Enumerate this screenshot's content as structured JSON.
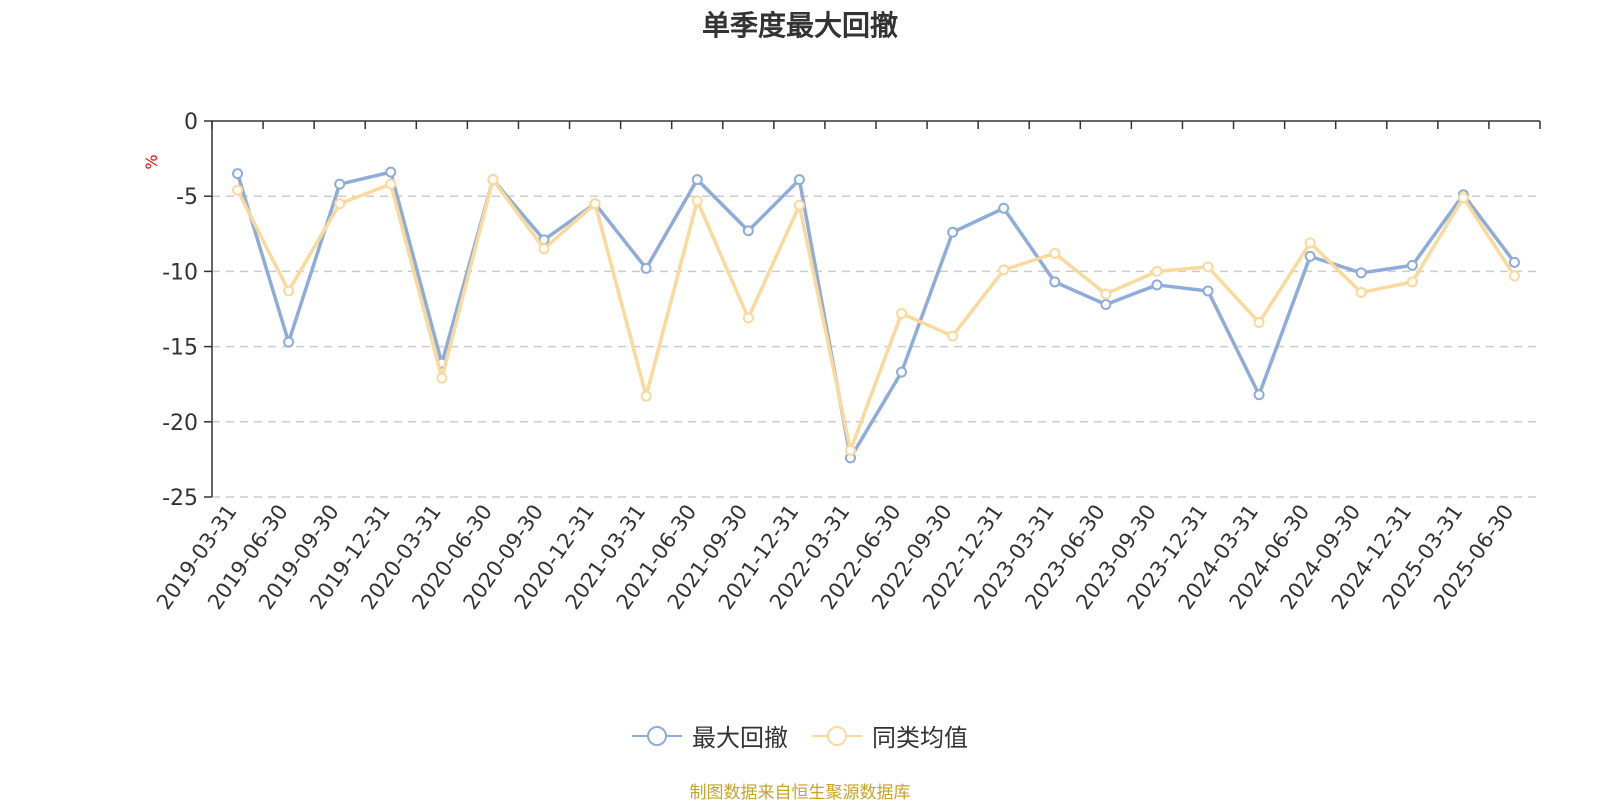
{
  "chart_data": {
    "type": "line",
    "title": "单季度最大回撤",
    "ylabel": "%",
    "xlabel": "",
    "ylim": [
      -25,
      0
    ],
    "yticks": [
      0,
      -5,
      -10,
      -15,
      -20,
      -25
    ],
    "grid": "horizontal dashed",
    "legend_position": "bottom",
    "categories": [
      "2019-03-31",
      "2019-06-30",
      "2019-09-30",
      "2019-12-31",
      "2020-03-31",
      "2020-06-30",
      "2020-09-30",
      "2020-12-31",
      "2021-03-31",
      "2021-06-30",
      "2021-09-30",
      "2021-12-31",
      "2022-03-31",
      "2022-06-30",
      "2022-09-30",
      "2022-12-31",
      "2023-03-31",
      "2023-06-30",
      "2023-09-30",
      "2023-12-31",
      "2024-03-31",
      "2024-06-30",
      "2024-09-30",
      "2024-12-31",
      "2025-03-31",
      "2025-06-30"
    ],
    "series": [
      {
        "name": "最大回撤",
        "color": "#8eacdb",
        "values": [
          -3.5,
          -14.7,
          -4.2,
          -3.4,
          -16.1,
          -3.9,
          -7.9,
          -5.5,
          -9.8,
          -3.9,
          -7.3,
          -3.9,
          -22.4,
          -16.7,
          -7.4,
          -5.8,
          -10.7,
          -12.2,
          -10.9,
          -11.3,
          -18.2,
          -9.0,
          -10.1,
          -9.6,
          -4.9,
          -9.4
        ]
      },
      {
        "name": "同类均值",
        "color": "#fbd99b",
        "values": [
          -4.6,
          -11.3,
          -5.5,
          -4.2,
          -17.1,
          -3.9,
          -8.5,
          -5.5,
          -18.3,
          -5.3,
          -13.1,
          -5.6,
          -21.9,
          -12.8,
          -14.3,
          -9.9,
          -8.8,
          -11.5,
          -10.0,
          -9.7,
          -13.4,
          -8.1,
          -11.4,
          -10.7,
          -5.1,
          -10.3
        ]
      }
    ]
  },
  "footer": {
    "source": "制图数据来自恒生聚源数据库"
  }
}
